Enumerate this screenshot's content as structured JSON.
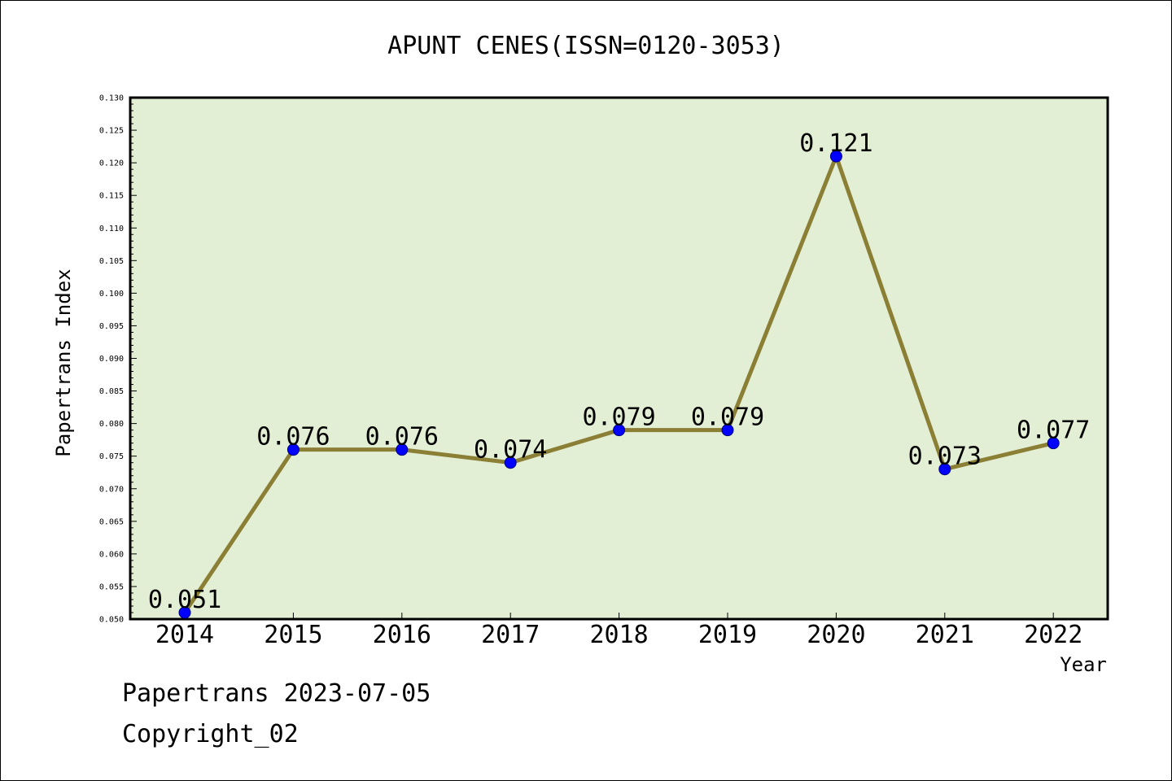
{
  "colors": {
    "plot_background": "#e2efd4",
    "line": "#8b7e35",
    "marker": "#0000ff",
    "marker_edge": "#000080",
    "axis": "#000000"
  },
  "chart_data": {
    "type": "line",
    "title": "APUNT CENES(ISSN=0120-3053)",
    "xlabel": "Year",
    "ylabel": "Papertrans Index",
    "categories": [
      "2014",
      "2015",
      "2016",
      "2017",
      "2018",
      "2019",
      "2020",
      "2021",
      "2022"
    ],
    "values": [
      0.051,
      0.076,
      0.076,
      0.074,
      0.079,
      0.079,
      0.121,
      0.073,
      0.077
    ],
    "data_labels": [
      "0.051",
      "0.076",
      "0.076",
      "0.074",
      "0.079",
      "0.079",
      "0.121",
      "0.073",
      "0.077"
    ],
    "ylim": [
      0.05,
      0.13
    ],
    "yticks": [
      "0.050",
      "0.055",
      "0.060",
      "0.065",
      "0.070",
      "0.075",
      "0.080",
      "0.085",
      "0.090",
      "0.095",
      "0.100",
      "0.105",
      "0.110",
      "0.115",
      "0.120",
      "0.125",
      "0.130"
    ],
    "grid": false,
    "legend": "none"
  },
  "footer": {
    "date_line": "Papertrans 2023-07-05",
    "copyright": "Copyright_02"
  }
}
